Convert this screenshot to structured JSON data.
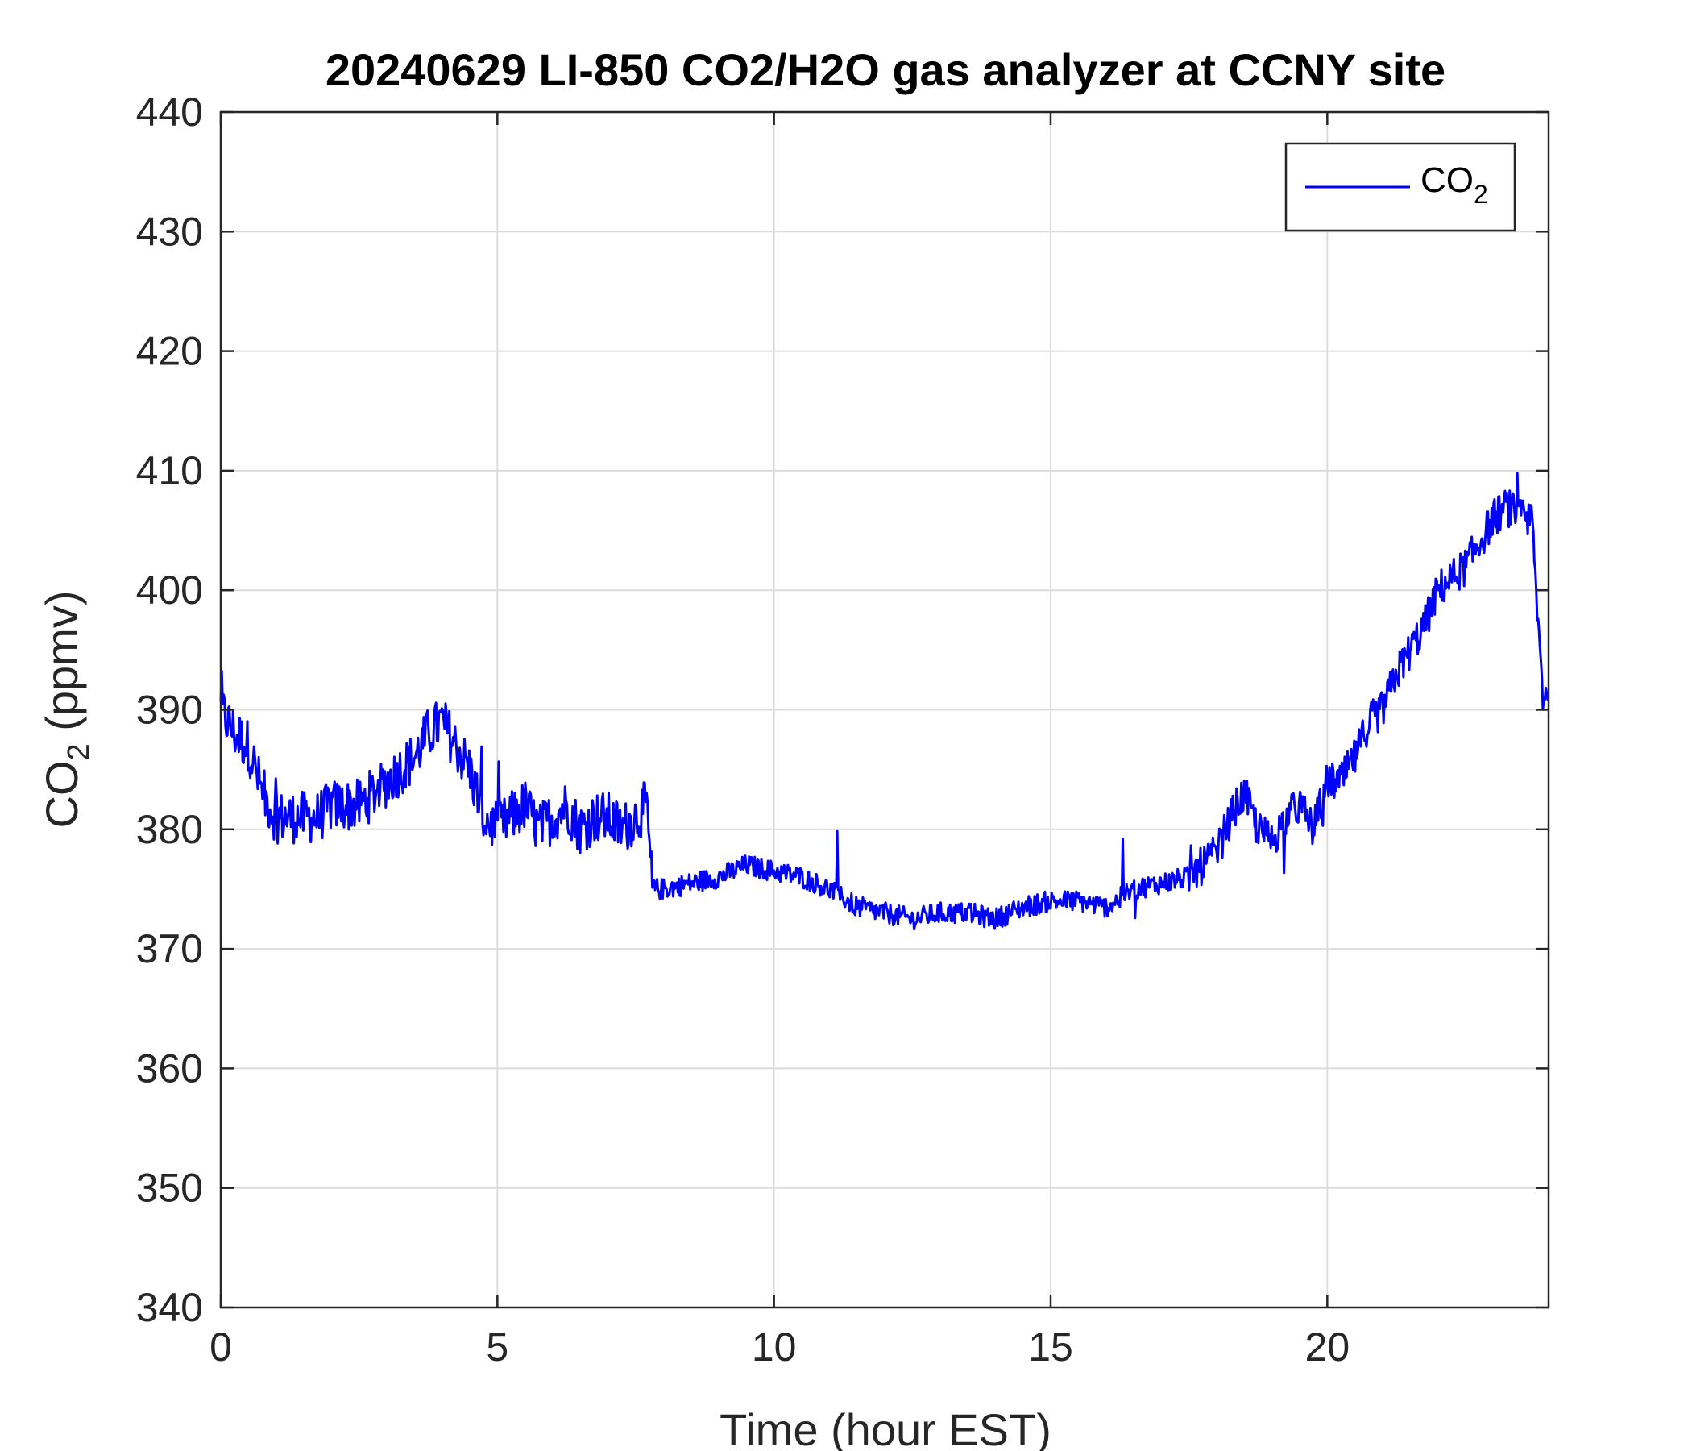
{
  "chart_data": {
    "type": "line",
    "title": "20240629 LI-850 CO2/H2O gas analyzer at CCNY site",
    "xlabel": "Time (hour EST)",
    "ylabel": "CO2 (ppmv)",
    "ylabel_base": "CO",
    "ylabel_sub": "2",
    "ylabel_suffix": " (ppmv)",
    "xlim": [
      0,
      24
    ],
    "ylim": [
      340,
      440
    ],
    "xticks": [
      0,
      5,
      10,
      15,
      20
    ],
    "yticks": [
      340,
      350,
      360,
      370,
      380,
      390,
      400,
      410,
      420,
      430,
      440
    ],
    "grid": true,
    "legend_position": "top-right",
    "series": [
      {
        "name": "CO2",
        "legend_base": "CO",
        "legend_sub": "2",
        "color": "#0000ff",
        "x": [
          0,
          0.25,
          0.5,
          0.75,
          1.0,
          1.25,
          1.5,
          1.75,
          2.0,
          2.25,
          2.5,
          2.75,
          3.0,
          3.25,
          3.5,
          3.75,
          4.0,
          4.25,
          4.5,
          4.75,
          5.0,
          5.25,
          5.5,
          5.75,
          6.0,
          6.25,
          6.5,
          6.75,
          7.0,
          7.25,
          7.5,
          7.7,
          7.8,
          8.0,
          8.5,
          9.0,
          9.5,
          10.0,
          10.5,
          11.0,
          11.5,
          12.0,
          12.5,
          13.0,
          13.5,
          14.0,
          14.5,
          15.0,
          15.5,
          16.0,
          16.5,
          17.0,
          17.5,
          18.0,
          18.25,
          18.5,
          18.75,
          19.0,
          19.25,
          19.5,
          19.75,
          20.0,
          20.25,
          20.5,
          20.75,
          21.0,
          21.25,
          21.5,
          21.75,
          22.0,
          22.25,
          22.5,
          22.75,
          23.0,
          23.25,
          23.5,
          23.7,
          23.8,
          23.9,
          24.0
        ],
        "y": [
          390,
          388,
          387,
          383,
          381,
          381,
          381,
          381,
          382,
          382,
          382,
          383,
          384,
          385,
          386,
          388,
          389,
          387,
          385,
          381,
          380,
          381,
          382,
          380,
          381,
          382,
          380,
          381,
          381,
          380,
          381,
          382,
          375,
          375,
          375.5,
          376,
          377,
          376.5,
          376,
          375,
          373.5,
          373,
          372.5,
          373,
          373,
          372.5,
          373.5,
          374,
          374,
          373.5,
          375,
          375.5,
          376,
          378,
          381,
          383,
          380,
          379,
          381,
          382,
          380,
          384,
          384,
          386,
          389,
          390,
          393,
          395,
          397,
          400,
          401,
          402,
          404,
          406,
          407,
          406,
          406,
          398,
          391,
          392
        ]
      }
    ]
  }
}
